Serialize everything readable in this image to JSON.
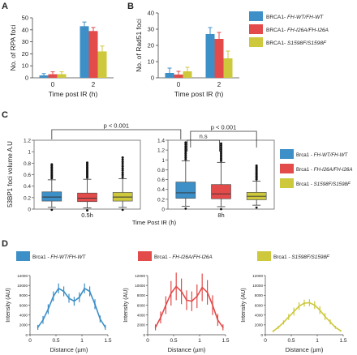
{
  "colors": {
    "wt": "#3d8fc7",
    "i26a": "#e34a4a",
    "s1598f": "#cdc83c"
  },
  "chart_data": [
    {
      "panel": "A",
      "type": "bar",
      "ylabel": "No. of RPA foci",
      "xlabel": "Time post IR (h)",
      "ylim": [
        0,
        50
      ],
      "yticks": [
        0,
        10,
        20,
        30,
        40,
        50
      ],
      "categories": [
        "0",
        "2"
      ],
      "series": [
        {
          "values": [
            2,
            43
          ],
          "errors": [
            1.5,
            3.5
          ]
        },
        {
          "values": [
            3,
            39
          ],
          "errors": [
            2.0,
            3.0
          ]
        },
        {
          "values": [
            3,
            22
          ],
          "errors": [
            2.0,
            4.5
          ]
        }
      ],
      "legend": [
        "BRCA1- FH-WT/FH-WT",
        "BRCA1- FH-I26A/FH-I26A",
        "BRCA1- S1598F/S1598F"
      ]
    },
    {
      "panel": "B",
      "type": "bar",
      "ylabel": "No. of Rad51 foci",
      "xlabel": "Time post IR (h)",
      "ylim": [
        0,
        40
      ],
      "yticks": [
        0,
        10,
        20,
        30,
        40
      ],
      "categories": [
        "0",
        "2"
      ],
      "series": [
        {
          "values": [
            3,
            27
          ],
          "errors": [
            3.0,
            4.0
          ]
        },
        {
          "values": [
            2,
            24
          ],
          "errors": [
            2.0,
            4.0
          ]
        },
        {
          "values": [
            4,
            12
          ],
          "errors": [
            2.5,
            4.5
          ]
        }
      ]
    },
    {
      "panel": "C",
      "type": "box",
      "ylabel": "53BP1 foci volume A.U",
      "xlabel": "Time Post IR (h)",
      "groups": [
        "0.5h",
        "8h"
      ],
      "ylim_left": [
        0,
        1.2
      ],
      "yticks_left": [
        0,
        0.2,
        0.4,
        0.6,
        0.8,
        1,
        1.2
      ],
      "ylim_right": [
        0,
        1.4
      ],
      "yticks_right": [
        0,
        0.2,
        0.4,
        0.6,
        0.8,
        1,
        1.2,
        1.4
      ],
      "boxes": [
        {
          "group": "0.5h",
          "q1": 0.14,
          "median": 0.21,
          "q3": 0.3,
          "whisker_low": 0.03,
          "whisker_high": 0.51,
          "outlier_top": 0.75
        },
        {
          "group": "0.5h",
          "q1": 0.13,
          "median": 0.19,
          "q3": 0.28,
          "whisker_low": 0.02,
          "whisker_high": 0.52,
          "outlier_top": 0.78
        },
        {
          "group": "0.5h",
          "q1": 0.14,
          "median": 0.21,
          "q3": 0.29,
          "whisker_low": 0.03,
          "whisker_high": 0.53,
          "outlier_top": 0.87
        },
        {
          "group": "8h",
          "q1": 0.22,
          "median": 0.33,
          "q3": 0.55,
          "whisker_low": 0.06,
          "whisker_high": 0.98,
          "outlier_top": 1.32
        },
        {
          "group": "8h",
          "q1": 0.21,
          "median": 0.31,
          "q3": 0.5,
          "whisker_low": 0.05,
          "whisker_high": 0.95,
          "outlier_top": 1.3
        },
        {
          "group": "8h",
          "q1": 0.19,
          "median": 0.26,
          "q3": 0.34,
          "whisker_low": 0.08,
          "whisker_high": 0.57,
          "outlier_top": 0.85
        }
      ],
      "pvalues": [
        "p < 0.001",
        "n.s",
        "p < 0.001"
      ],
      "legend": [
        "Brca1 - FH-WT/FH-WT",
        "Brca1 - FH-I26A/FH-I26A",
        "Brca1 - S1598F/S1598F"
      ]
    },
    {
      "panel": "D",
      "type": "line",
      "ylabel": "Intensity (AU)",
      "xlabel": "Distance (µm)",
      "xlim": [
        0,
        1.5
      ],
      "xticks": [
        0,
        0.5,
        1,
        1.5
      ],
      "ylim": [
        0,
        12000
      ],
      "yticks": [
        0,
        2000,
        4000,
        6000,
        8000,
        10000,
        12000
      ],
      "plots": [
        {
          "legend": "Brca1 - FH-WT/FH-WT",
          "x": [
            0.15,
            0.25,
            0.35,
            0.45,
            0.55,
            0.65,
            0.75,
            0.85,
            0.95,
            1.05,
            1.15,
            1.25,
            1.35,
            1.45
          ],
          "y": [
            1500,
            3000,
            5200,
            7800,
            9400,
            8800,
            7400,
            6800,
            7600,
            9400,
            8800,
            6200,
            3200,
            1500
          ],
          "err": [
            500,
            800,
            1000,
            1000,
            1000,
            1000,
            900,
            900,
            1000,
            1000,
            1000,
            1000,
            700,
            500
          ]
        },
        {
          "legend": "Brca1 - FH-I26A/FH-I26A",
          "x": [
            0.15,
            0.25,
            0.35,
            0.45,
            0.55,
            0.65,
            0.75,
            0.85,
            0.95,
            1.05,
            1.15,
            1.25,
            1.35,
            1.45
          ],
          "y": [
            1500,
            3500,
            6000,
            8400,
            9800,
            8800,
            7000,
            6800,
            7800,
            9600,
            8600,
            6000,
            3000,
            1500
          ],
          "err": [
            600,
            1200,
            1800,
            2500,
            2800,
            2600,
            2000,
            2000,
            2400,
            2800,
            2500,
            2000,
            1200,
            600
          ]
        },
        {
          "legend": "Brca1 - S1598F/S1598F",
          "x": [
            0.15,
            0.25,
            0.35,
            0.45,
            0.55,
            0.65,
            0.75,
            0.85,
            0.95,
            1.05,
            1.15,
            1.25,
            1.35,
            1.45
          ],
          "y": [
            700,
            1500,
            2500,
            3600,
            4700,
            5800,
            6400,
            6500,
            6000,
            5000,
            3700,
            2600,
            1500,
            800
          ],
          "err": [
            200,
            300,
            400,
            600,
            800,
            800,
            700,
            700,
            800,
            800,
            700,
            500,
            300,
            200
          ]
        }
      ]
    }
  ]
}
